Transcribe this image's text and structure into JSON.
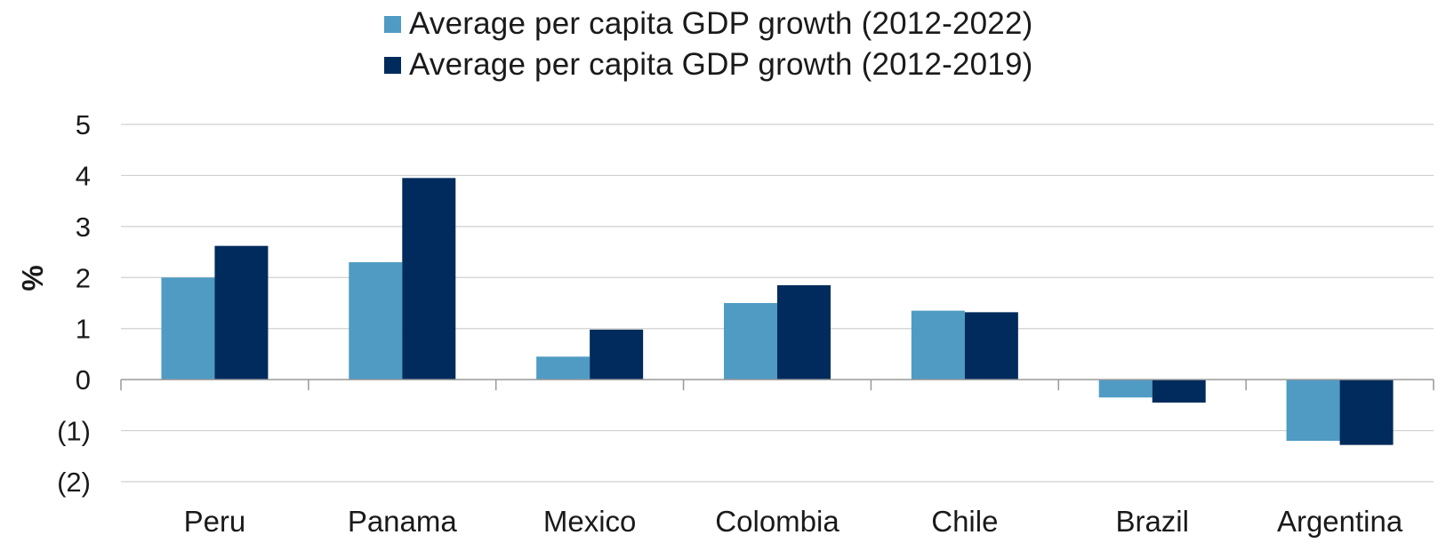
{
  "chart_data": {
    "type": "bar",
    "categories": [
      "Peru",
      "Panama",
      "Mexico",
      "Colombia",
      "Chile",
      "Brazil",
      "Argentina"
    ],
    "series": [
      {
        "name": "Average per capita GDP growth (2012-2022)",
        "color": "#4f9bc4",
        "values": [
          2.0,
          2.3,
          0.45,
          1.5,
          1.35,
          -0.35,
          -1.2
        ]
      },
      {
        "name": "Average per capita GDP growth (2012-2019)",
        "color": "#002b5c",
        "values": [
          2.62,
          3.95,
          0.98,
          1.85,
          1.32,
          -0.45,
          -1.28
        ]
      }
    ],
    "ylabel": "%",
    "ylim": [
      -2,
      5
    ],
    "yticks": [
      5,
      4,
      3,
      2,
      1,
      0,
      -1,
      -2
    ],
    "ytick_labels": [
      "5",
      "4",
      "3",
      "2",
      "1",
      "0",
      "(1)",
      "(2)"
    ],
    "grid": true,
    "legend_position": "top-center"
  }
}
